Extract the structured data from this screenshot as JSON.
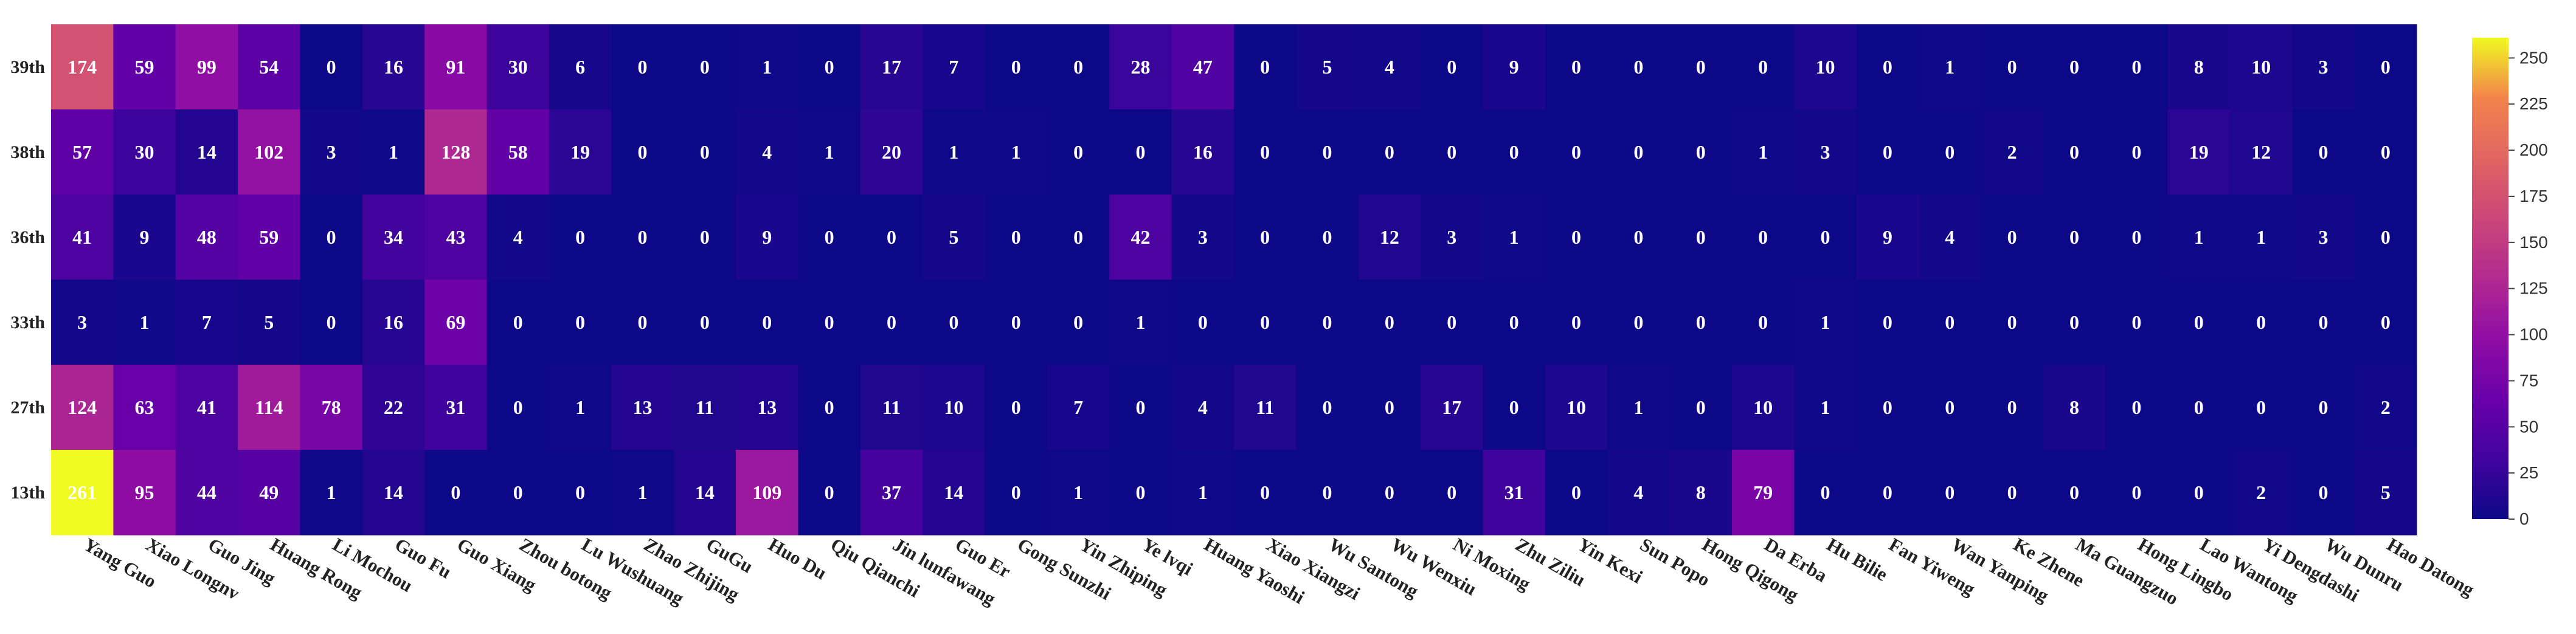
{
  "chart_data": {
    "type": "heatmap",
    "title": "",
    "xlabel": "",
    "ylabel": "",
    "x_categories": [
      "Yang Guo",
      "Xiao Longnv",
      "Guo Jing",
      "Huang Rong",
      "Li Mochou",
      "Guo Fu",
      "Guo Xiang",
      "Zhou botong",
      "Lu Wushuang",
      "Zhao Zhijing",
      "GuGu",
      "Huo Du",
      "Qiu Qianchi",
      "Jin lunfawang",
      "Guo Er",
      "Gong Sunzhi",
      "Yin Zhiping",
      "Ye lvqi",
      "Huang Yaoshi",
      "Xiao Xiangzi",
      "Wu Santong",
      "Wu Wenxiu",
      "Ni Moxing",
      "Zhu Ziliu",
      "Yin Kexi",
      "Sun Popo",
      "Hong Qigong",
      "Da Erba",
      "Hu Bilie",
      "Fan Yiweng",
      "Wan Yanping",
      "Ke Zhene",
      "Ma Guangzuo",
      "Hong Lingbo",
      "Lao Wantong",
      "Yi Dengdashi",
      "Wu Dunru",
      "Hao Datong"
    ],
    "y_categories": [
      "39th",
      "38th",
      "36th",
      "33th",
      "27th",
      "13th"
    ],
    "values": [
      [
        174,
        59,
        99,
        54,
        0,
        16,
        91,
        30,
        6,
        0,
        0,
        1,
        0,
        17,
        7,
        0,
        0,
        28,
        47,
        0,
        5,
        4,
        0,
        9,
        0,
        0,
        0,
        0,
        10,
        0,
        1,
        0,
        0,
        0,
        8,
        10,
        3,
        0
      ],
      [
        57,
        30,
        14,
        102,
        3,
        1,
        128,
        58,
        19,
        0,
        0,
        4,
        1,
        20,
        1,
        1,
        0,
        0,
        16,
        0,
        0,
        0,
        0,
        0,
        0,
        0,
        0,
        1,
        3,
        0,
        0,
        2,
        0,
        0,
        19,
        12,
        0,
        0
      ],
      [
        41,
        9,
        48,
        59,
        0,
        34,
        43,
        4,
        0,
        0,
        0,
        9,
        0,
        0,
        5,
        0,
        0,
        42,
        3,
        0,
        0,
        12,
        3,
        1,
        0,
        0,
        0,
        0,
        0,
        9,
        4,
        0,
        0,
        0,
        1,
        1,
        3,
        0
      ],
      [
        3,
        1,
        7,
        5,
        0,
        16,
        69,
        0,
        0,
        0,
        0,
        0,
        0,
        0,
        0,
        0,
        0,
        1,
        0,
        0,
        0,
        0,
        0,
        0,
        0,
        0,
        0,
        0,
        1,
        0,
        0,
        0,
        0,
        0,
        0,
        0,
        0,
        0
      ],
      [
        124,
        63,
        41,
        114,
        78,
        22,
        31,
        0,
        1,
        13,
        11,
        13,
        0,
        11,
        10,
        0,
        7,
        0,
        4,
        11,
        0,
        0,
        17,
        0,
        10,
        1,
        0,
        10,
        1,
        0,
        0,
        0,
        8,
        0,
        0,
        0,
        0,
        2
      ],
      [
        261,
        95,
        44,
        49,
        1,
        14,
        0,
        0,
        0,
        1,
        14,
        109,
        0,
        37,
        14,
        0,
        1,
        0,
        1,
        0,
        0,
        0,
        0,
        31,
        0,
        4,
        8,
        79,
        0,
        0,
        0,
        0,
        0,
        0,
        0,
        2,
        0,
        5
      ]
    ],
    "zlim": [
      0,
      261
    ],
    "colorbar_ticks": [
      "0",
      "25",
      "50",
      "75",
      "100",
      "125",
      "150",
      "175",
      "200",
      "225",
      "250"
    ],
    "colormap": "plasma",
    "grid": false,
    "legend": "colorbar-right"
  }
}
